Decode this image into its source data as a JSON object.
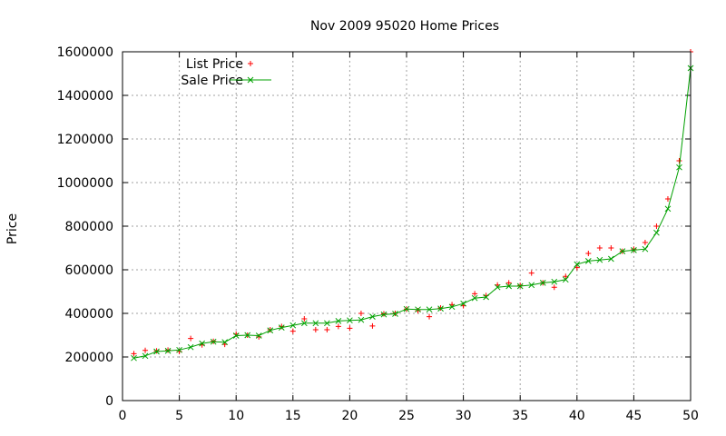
{
  "chart_data": {
    "type": "scatter",
    "title": "Nov 2009 95020 Home Prices",
    "xlabel": "",
    "ylabel": "Price",
    "xlim": [
      0,
      50
    ],
    "ylim": [
      0,
      1600000
    ],
    "x_ticks": [
      "0",
      "5",
      "10",
      "15",
      "20",
      "25",
      "30",
      "35",
      "40",
      "45",
      "50"
    ],
    "y_ticks": [
      "0",
      "200000",
      "400000",
      "600000",
      "800000",
      "1000000",
      "1200000",
      "1400000",
      "1600000"
    ],
    "grid": true,
    "legend_position": "top-left",
    "series": [
      {
        "name": "List Price",
        "style": "points",
        "marker": "plus",
        "color": "#ff0000",
        "x": [
          1,
          2,
          3,
          4,
          5,
          6,
          7,
          8,
          9,
          10,
          11,
          12,
          13,
          14,
          15,
          16,
          17,
          18,
          19,
          20,
          21,
          22,
          23,
          24,
          25,
          26,
          27,
          28,
          29,
          30,
          31,
          32,
          33,
          34,
          35,
          36,
          37,
          38,
          39,
          40,
          41,
          42,
          43,
          44,
          45,
          46,
          47,
          48,
          49,
          50
        ],
        "values": [
          215000,
          230000,
          228000,
          232000,
          225000,
          285000,
          255000,
          272000,
          258000,
          305000,
          300000,
          292000,
          325000,
          340000,
          318000,
          375000,
          325000,
          325000,
          340000,
          332000,
          400000,
          342000,
          398000,
          400000,
          420000,
          412000,
          385000,
          425000,
          440000,
          435000,
          490000,
          482000,
          530000,
          540000,
          528000,
          585000,
          540000,
          520000,
          570000,
          610000,
          675000,
          700000,
          700000,
          685000,
          695000,
          725000,
          800000,
          925000,
          1100000,
          1600000
        ]
      },
      {
        "name": "Sale Price",
        "style": "linespoints",
        "marker": "cross",
        "color": "#00a000",
        "x": [
          1,
          2,
          3,
          4,
          5,
          6,
          7,
          8,
          9,
          10,
          11,
          12,
          13,
          14,
          15,
          16,
          17,
          18,
          19,
          20,
          21,
          22,
          23,
          24,
          25,
          26,
          27,
          28,
          29,
          30,
          31,
          32,
          33,
          34,
          35,
          36,
          37,
          38,
          39,
          40,
          41,
          42,
          43,
          44,
          45,
          46,
          47,
          48,
          49,
          50
        ],
        "values": [
          195000,
          205000,
          225000,
          228000,
          232000,
          245000,
          262000,
          270000,
          268000,
          298000,
          300000,
          298000,
          322000,
          335000,
          345000,
          355000,
          355000,
          355000,
          365000,
          368000,
          370000,
          385000,
          395000,
          398000,
          420000,
          418000,
          418000,
          422000,
          430000,
          445000,
          470000,
          475000,
          520000,
          525000,
          525000,
          530000,
          540000,
          545000,
          555000,
          625000,
          640000,
          645000,
          650000,
          685000,
          690000,
          695000,
          770000,
          880000,
          1070000,
          1525000
        ]
      }
    ]
  }
}
